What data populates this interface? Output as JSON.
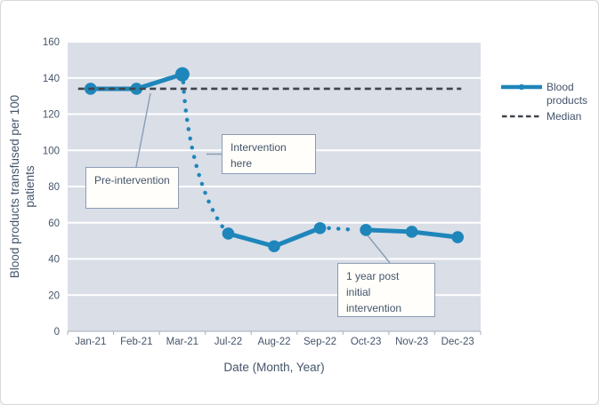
{
  "chart_data": {
    "type": "line",
    "title": "",
    "categories": [
      "Jan-21",
      "Feb-21",
      "Mar-21",
      "Jul-22",
      "Aug-22",
      "Sep-22",
      "Oct-23",
      "Nov-23",
      "Dec-23"
    ],
    "series": [
      {
        "name": "Blood products",
        "values": [
          134,
          134,
          142,
          54,
          47,
          57,
          56,
          55,
          52
        ],
        "color": "#1e86ba",
        "marker": "circle",
        "segments": [
          {
            "from": 0,
            "to": 2,
            "style": "solid"
          },
          {
            "from": 2,
            "to": 3,
            "style": "dotted"
          },
          {
            "from": 3,
            "to": 5,
            "style": "solid"
          },
          {
            "from": 5,
            "to": 6,
            "style": "dotted"
          },
          {
            "from": 6,
            "to": 8,
            "style": "solid"
          }
        ]
      },
      {
        "name": "Median",
        "type": "hline",
        "value": 134,
        "style": "dashed",
        "color": "#3f4449"
      }
    ],
    "xlabel": "Date (Month, Year)",
    "ylabel": "Blood products transfused per 100 patients",
    "ylabel_lines": [
      "Blood products transfused per 100",
      "patients"
    ],
    "ylim": [
      0,
      160
    ],
    "ytick_step": 20,
    "plot_bg": "#d9dee7",
    "grid_color": "#ffffff",
    "axis_color": "#b3bac6",
    "text_color": "#44546a",
    "legend_position": "right",
    "grid": true
  },
  "legend": {
    "items": [
      {
        "label": "Blood products",
        "style": "line-marker",
        "color": "#1e86ba"
      },
      {
        "label": "Median",
        "style": "dashed",
        "color": "#3f4449"
      }
    ]
  },
  "annotations": [
    {
      "id": "pre",
      "text": "Pre-intervention"
    },
    {
      "id": "during",
      "text": "Intervention here"
    },
    {
      "id": "post",
      "text": "1 year post initial intervention"
    }
  ]
}
